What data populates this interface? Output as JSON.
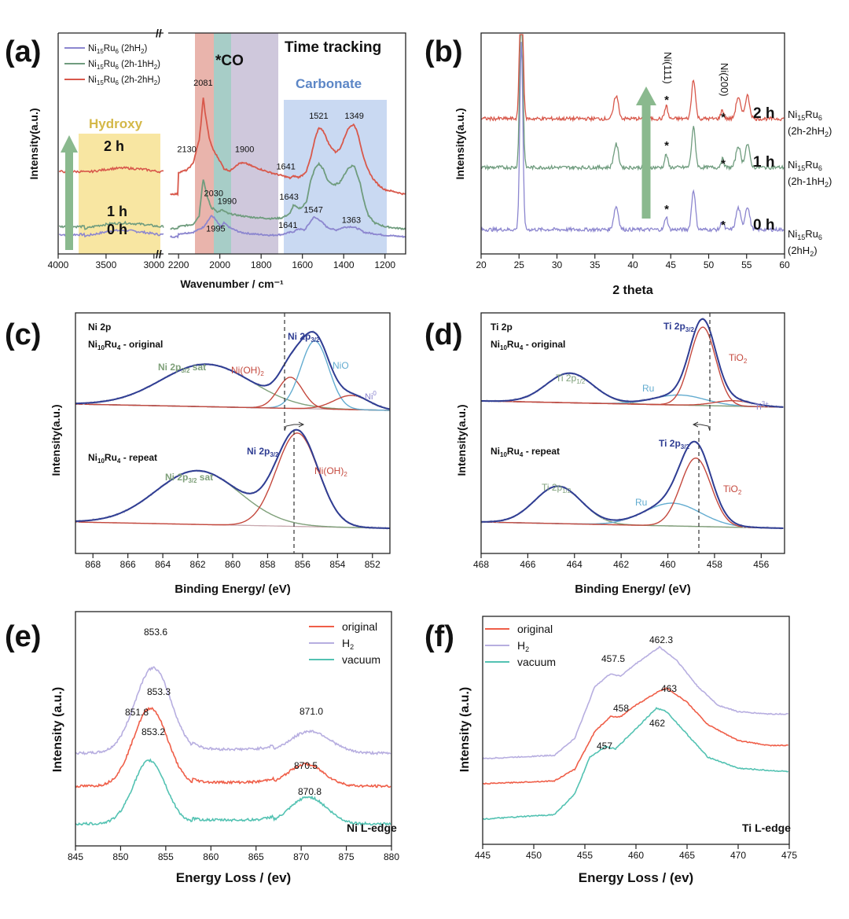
{
  "colors": {
    "red": "#d8584b",
    "green": "#6f9c7e",
    "purple": "#8c86cf",
    "navy": "#2f3d93",
    "olive": "#7fa07a",
    "teal_fit": "#63acd0",
    "red_fit": "#c4483d",
    "baseline": "#c7a7ae",
    "eels_orange": "#ef5e48",
    "eels_lilac": "#b7aee0",
    "eels_teal": "#53c2b2",
    "arrow": "#8ab98e",
    "hydroxy": "#f8e6a2",
    "carbonate": "#c9d9f2",
    "band_red": "#e9b4ac",
    "band_teal": "#a7cdc7",
    "band_purple": "#cfc8dc"
  },
  "chart_data": [
    {
      "id": "a",
      "panel_label": "(a)",
      "type": "line",
      "title": "Time tracking",
      "xlabel": "Wavenumber / cm⁻¹",
      "ylabel": "Intensity(a.u.)",
      "xlim_left": [
        4000,
        2900
      ],
      "xlim_right": [
        2250,
        1100
      ],
      "xticks_left": [
        "4000",
        "3500",
        "3000"
      ],
      "xticks_right": [
        "2200",
        "2000",
        "1800",
        "1600",
        "1400",
        "1200"
      ],
      "legend": [
        "Ni15Ru6 (2hH2)",
        "Ni15Ru6 (2h-1hH2)",
        "Ni15Ru6 (2h-2hH2)"
      ],
      "region_labels": {
        "hydroxy": "Hydroxy",
        "co": "*CO",
        "carbonate": "Carbonate"
      },
      "time_labels": [
        "2 h",
        "1 h",
        "0 h"
      ],
      "series": [
        {
          "name": "Ni15Ru6 (2hH2)",
          "color_key": "purple",
          "hydroxy_x": [
            3720,
            3600,
            3450,
            3300,
            3100,
            2950
          ],
          "hydroxy_y": [
            0.02,
            0.05,
            0.09,
            0.1,
            0.07,
            0.04
          ],
          "x": [
            2200,
            2130,
            2081,
            2040,
            2030,
            2010,
            1995,
            1980,
            1950,
            1900,
            1850,
            1800,
            1750,
            1700,
            1660,
            1641,
            1620,
            1590,
            1560,
            1547,
            1520,
            1480,
            1440,
            1400,
            1363,
            1330,
            1300,
            1250,
            1200,
            1150,
            1110
          ],
          "y": [
            0.05,
            0.07,
            0.14,
            0.3,
            0.28,
            0.2,
            0.14,
            0.2,
            0.13,
            0.07,
            0.05,
            0.04,
            0.03,
            0.04,
            0.07,
            0.08,
            0.12,
            0.1,
            0.22,
            0.28,
            0.25,
            0.14,
            0.1,
            0.14,
            0.15,
            0.12,
            0.07,
            0.05,
            0.03,
            0.02,
            0.01
          ]
        },
        {
          "name": "Ni15Ru6 (2h-1hH2)",
          "color_key": "green",
          "hydroxy_x": [
            3720,
            3600,
            3450,
            3300,
            3100,
            2950
          ],
          "hydroxy_y": [
            0.12,
            0.16,
            0.19,
            0.2,
            0.18,
            0.15
          ],
          "x": [
            2200,
            2130,
            2100,
            2081,
            2060,
            2040,
            2030,
            2010,
            1990,
            1960,
            1900,
            1850,
            1800,
            1750,
            1700,
            1660,
            1643,
            1620,
            1600,
            1580,
            1560,
            1540,
            1521,
            1500,
            1480,
            1450,
            1420,
            1400,
            1380,
            1360,
            1349,
            1320,
            1300,
            1280,
            1250,
            1200,
            1150,
            1110
          ],
          "y": [
            0.15,
            0.18,
            0.3,
            0.82,
            0.55,
            0.4,
            0.4,
            0.35,
            0.38,
            0.33,
            0.3,
            0.28,
            0.27,
            0.26,
            0.27,
            0.33,
            0.45,
            0.4,
            0.42,
            0.5,
            0.78,
            0.95,
            1.02,
            0.95,
            0.8,
            0.72,
            0.76,
            0.85,
            0.95,
            0.99,
            0.99,
            0.75,
            0.48,
            0.3,
            0.2,
            0.15,
            0.13,
            0.12
          ]
        },
        {
          "name": "Ni15Ru6 (2h-2hH2)",
          "color_key": "red",
          "hydroxy_x": [
            3720,
            3600,
            3450,
            3300,
            3100,
            2950
          ],
          "hydroxy_y": [
            0.9,
            0.92,
            0.95,
            0.96,
            0.94,
            0.91
          ],
          "x": [
            2200,
            2160,
            2130,
            2100,
            2090,
            2081,
            2070,
            2050,
            2030,
            2000,
            1980,
            1950,
            1920,
            1900,
            1870,
            1840,
            1800,
            1760,
            1720,
            1680,
            1660,
            1641,
            1620,
            1600,
            1580,
            1560,
            1540,
            1521,
            1500,
            1470,
            1440,
            1420,
            1400,
            1380,
            1360,
            1349,
            1330,
            1310,
            1290,
            1260,
            1230,
            1200,
            1150,
            1110
          ],
          "y": [
            0.9,
            0.93,
            1.02,
            1.35,
            1.6,
            1.95,
            1.7,
            1.35,
            1.2,
            1.06,
            0.95,
            0.92,
            1.0,
            1.03,
            1.02,
            0.98,
            0.94,
            0.9,
            0.87,
            0.84,
            0.82,
            0.85,
            0.83,
            0.86,
            0.92,
            1.1,
            1.35,
            1.52,
            1.48,
            1.28,
            1.18,
            1.22,
            1.35,
            1.5,
            1.55,
            1.56,
            1.42,
            1.18,
            0.98,
            0.82,
            0.72,
            0.66,
            0.63,
            0.6
          ]
        }
      ],
      "annotations": [
        {
          "text": "2081",
          "x": 2081,
          "y": 2.1
        },
        {
          "text": "2130",
          "x": 2160,
          "y": 1.18
        },
        {
          "text": "1900",
          "x": 1880,
          "y": 1.18
        },
        {
          "text": "1641",
          "x": 1680,
          "y": 0.94
        },
        {
          "text": "1521",
          "x": 1521,
          "y": 1.64
        },
        {
          "text": "1349",
          "x": 1349,
          "y": 1.64
        },
        {
          "text": "2030",
          "x": 2030,
          "y": 0.57
        },
        {
          "text": "1990",
          "x": 1965,
          "y": 0.46
        },
        {
          "text": "1995",
          "x": 2020,
          "y": 0.08
        },
        {
          "text": "1643",
          "x": 1665,
          "y": 0.52
        },
        {
          "text": "1641",
          "x": 1670,
          "y": 0.13
        },
        {
          "text": "1547",
          "x": 1547,
          "y": 0.34
        },
        {
          "text": "1363",
          "x": 1363,
          "y": 0.2
        }
      ]
    },
    {
      "id": "b",
      "panel_label": "(b)",
      "type": "line",
      "xlabel": "2 theta",
      "ylabel": "Intensity(a.u.)",
      "xlim": [
        20,
        60
      ],
      "xticks": [
        "20",
        "25",
        "30",
        "35",
        "40",
        "45",
        "50",
        "55",
        "60"
      ],
      "peak_labels": [
        "Ni(111)",
        "Ni(200)"
      ],
      "peaks": [
        {
          "pos": 25.3,
          "h": 2.6,
          "w": 0.2
        },
        {
          "pos": 37.8,
          "h": 0.32,
          "w": 0.3
        },
        {
          "pos": 44.4,
          "h": 0.18,
          "w": 0.2
        },
        {
          "pos": 48.0,
          "h": 0.55,
          "w": 0.25
        },
        {
          "pos": 51.8,
          "h": 0.12,
          "w": 0.2
        },
        {
          "pos": 53.9,
          "h": 0.3,
          "w": 0.3
        },
        {
          "pos": 55.1,
          "h": 0.32,
          "w": 0.3
        }
      ],
      "series": [
        {
          "name": "0 h",
          "sample": "Ni15Ru6 (2hH2)",
          "color_key": "purple",
          "offset": 0
        },
        {
          "name": "1 h",
          "sample": "Ni15Ru6 (2h-1hH2)",
          "color_key": "green",
          "offset": 1
        },
        {
          "name": "2 h",
          "sample": "Ni15Ru6 (2h-2hH2)",
          "color_key": "red",
          "offset": 2
        }
      ]
    },
    {
      "id": "c",
      "panel_label": "(c)",
      "type": "line",
      "title": "Ni 2p",
      "xlabel": "Binding Energy/ (eV)",
      "ylabel": "Intensity(a.u.)",
      "xlim": [
        869,
        851
      ],
      "xticks": [
        "868",
        "866",
        "864",
        "862",
        "860",
        "858",
        "856",
        "854",
        "852"
      ],
      "subplots": [
        {
          "sample": "Ni10Ru4 - original",
          "components": [
            {
              "label": "Ni 2p3/2 sat",
              "center": 861.5,
              "height": 0.75,
              "width": 2.6,
              "color_key": "olive"
            },
            {
              "label": "Ni(OH)2",
              "center": 856.7,
              "height": 0.55,
              "width": 0.7,
              "color_key": "red_fit"
            },
            {
              "label": "NiO",
              "center": 855.3,
              "height": 1.2,
              "width": 0.8,
              "color_key": "teal_fit"
            },
            {
              "label": "Ni0",
              "center": 853.2,
              "height": 0.25,
              "width": 1.0,
              "color_key": "red_fit"
            }
          ],
          "envelope_label": "Ni 2p3/2"
        },
        {
          "sample": "Ni10Ru4 - repeat",
          "components": [
            {
              "label": "Ni 2p3/2 sat",
              "center": 862.0,
              "height": 0.95,
              "width": 2.4,
              "color_key": "olive"
            },
            {
              "label": "Ni(OH)2",
              "center": 856.3,
              "height": 1.65,
              "width": 1.2,
              "color_key": "red_fit"
            }
          ],
          "envelope_label": "Ni 2p3/2"
        }
      ]
    },
    {
      "id": "d",
      "panel_label": "(d)",
      "type": "line",
      "title": "Ti 2p",
      "xlabel": "Binding Energy/ (eV)",
      "ylabel": "Intensity(a.u.)",
      "xlim": [
        468,
        455
      ],
      "xticks": [
        "468",
        "466",
        "464",
        "462",
        "460",
        "458",
        "456"
      ],
      "subplots": [
        {
          "sample": "Ni10Ru4 - original",
          "components": [
            {
              "label": "Ti 2p1/2",
              "center": 464.2,
              "height": 0.65,
              "width": 1.0,
              "color_key": "olive"
            },
            {
              "label": "Ru",
              "center": 459.5,
              "height": 0.22,
              "width": 1.1,
              "color_key": "teal_fit"
            },
            {
              "label": "TiO2",
              "center": 458.5,
              "height": 1.72,
              "width": 0.55,
              "color_key": "red_fit"
            },
            {
              "label": "Ti3+",
              "center": 457.2,
              "height": 0.12,
              "width": 0.8,
              "color_key": "red_fit"
            }
          ],
          "envelope_label": "Ti 2p3/2"
        },
        {
          "sample": "Ni10Ru4 - repeat",
          "components": [
            {
              "label": "Ti 2p1/2",
              "center": 464.7,
              "height": 0.82,
              "width": 1.0,
              "color_key": "olive"
            },
            {
              "label": "Ru",
              "center": 459.8,
              "height": 0.5,
              "width": 1.2,
              "color_key": "teal_fit"
            },
            {
              "label": "TiO2",
              "center": 458.8,
              "height": 1.5,
              "width": 0.65,
              "color_key": "red_fit"
            }
          ],
          "envelope_label": "Ti 2p3/2"
        }
      ]
    },
    {
      "id": "e",
      "panel_label": "(e)",
      "type": "line",
      "xlabel": "Energy Loss / (ev)",
      "ylabel": "Intensity (a.u.)",
      "xlim": [
        845,
        880
      ],
      "xticks": [
        "845",
        "850",
        "855",
        "860",
        "865",
        "870",
        "875",
        "880"
      ],
      "edge_label": "Ni L-edge",
      "legend": [
        "original",
        "H2",
        "vacuum"
      ],
      "series": [
        {
          "name": "original",
          "color_key": "eels_orange",
          "offset": 1,
          "peaks": [
            {
              "pos": 853.3,
              "h": 1.6,
              "w": 1.9
            },
            {
              "pos": 870.5,
              "h": 0.45,
              "w": 2.0
            }
          ],
          "labels": [
            "851.8",
            "853.3",
            "870.5"
          ]
        },
        {
          "name": "H2",
          "color_key": "eels_lilac",
          "offset": 2,
          "peaks": [
            {
              "pos": 853.6,
              "h": 1.75,
              "w": 2.0
            },
            {
              "pos": 871.0,
              "h": 0.45,
              "w": 2.2
            }
          ],
          "labels": [
            "853.6",
            "871.0"
          ]
        },
        {
          "name": "vacuum",
          "color_key": "eels_teal",
          "offset": 0,
          "peaks": [
            {
              "pos": 853.2,
              "h": 1.3,
              "w": 1.8
            },
            {
              "pos": 870.8,
              "h": 0.55,
              "w": 2.0
            }
          ],
          "labels": [
            "853.2",
            "870.8"
          ]
        }
      ]
    },
    {
      "id": "f",
      "panel_label": "(f)",
      "type": "line",
      "xlabel": "Energy Loss / (ev)",
      "ylabel": "Intensity (a.u.)",
      "xlim": [
        445,
        475
      ],
      "xticks": [
        "445",
        "450",
        "455",
        "460",
        "465",
        "470",
        "475"
      ],
      "edge_label": "Ti L-edge",
      "legend": [
        "original",
        "H2",
        "vacuum"
      ],
      "series": [
        {
          "name": "original",
          "color_key": "eels_orange",
          "offset": 1,
          "labels": [
            "458",
            "463"
          ]
        },
        {
          "name": "H2",
          "color_key": "eels_lilac",
          "offset": 2,
          "labels": [
            "457.5",
            "462.3"
          ]
        },
        {
          "name": "vacuum",
          "color_key": "eels_teal",
          "offset": 0,
          "labels": [
            "457",
            "462"
          ]
        }
      ]
    }
  ]
}
